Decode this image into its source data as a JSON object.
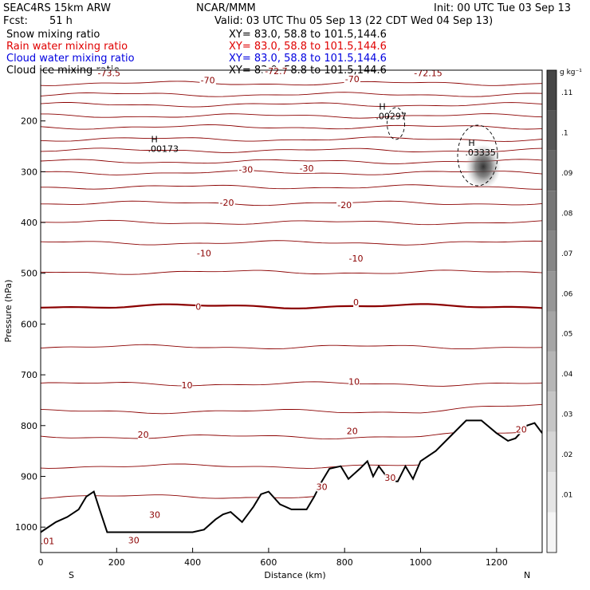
{
  "header": {
    "model": "SEAC4RS 15km ARW",
    "org": "NCAR/MMM",
    "init": "Init: 00 UTC Tue 03 Sep 13",
    "fcst_label": "Fcst:",
    "fcst_value": "51 h",
    "valid": "Valid: 03 UTC Thu 05 Sep 13 (22 CDT Wed 04 Sep 13)"
  },
  "fields": [
    {
      "name": "Snow mixing ratio",
      "xy": "XY=  83.0, 58.8 to 101.5,144.6",
      "color": "#000000"
    },
    {
      "name": "Rain water mixing ratio",
      "xy": "XY=  83.0, 58.8 to 101.5,144.6",
      "color": "#e00000"
    },
    {
      "name": "Cloud water mixing ratio",
      "xy": "XY=  83.0, 58.8 to 101.5,144.6",
      "color": "#0000e0"
    },
    {
      "name": "Cloud ice mixing ratio",
      "xy": "XY=  83.0, 58.8 to 101.5,144.6",
      "color": "#000000"
    }
  ],
  "colorbar": {
    "unit": "g kg⁻¹",
    "ticks": [
      ".11",
      ".1",
      ".09",
      ".08",
      ".07",
      ".06",
      ".05",
      ".04",
      ".03",
      ".02",
      ".01"
    ]
  },
  "chart_data": {
    "type": "contour",
    "xlabel": "Distance (km)",
    "ylabel": "Pressure (hPa)",
    "xlim": [
      0,
      1320
    ],
    "ylim": [
      1050,
      100
    ],
    "x_ticks": [
      0,
      200,
      400,
      600,
      800,
      1000,
      1200
    ],
    "y_ticks": [
      200,
      300,
      400,
      500,
      600,
      700,
      800,
      900,
      1000
    ],
    "x_end_labels": {
      "left": "S",
      "right": "N"
    },
    "contour_color": "#8b0000",
    "isotherm_levels": [
      -75,
      -70,
      -65,
      -60,
      -55,
      -50,
      -45,
      -40,
      -35,
      -30,
      -25,
      -20,
      -15,
      -10,
      -5,
      0,
      5,
      10,
      15,
      20,
      25,
      30
    ],
    "isotherm_labels": [
      {
        "text": "-73.5",
        "x": 180,
        "p": 110
      },
      {
        "text": "-72.7",
        "x": 620,
        "p": 106
      },
      {
        "text": "-72.15",
        "x": 1020,
        "p": 110
      },
      {
        "text": "-70",
        "x": 440,
        "p": 124
      },
      {
        "text": "-70",
        "x": 820,
        "p": 122
      },
      {
        "text": "-30",
        "x": 540,
        "p": 300
      },
      {
        "text": "-30",
        "x": 700,
        "p": 298
      },
      {
        "text": "-20",
        "x": 490,
        "p": 365
      },
      {
        "text": "-20",
        "x": 800,
        "p": 370
      },
      {
        "text": "-10",
        "x": 430,
        "p": 465
      },
      {
        "text": "-10",
        "x": 830,
        "p": 475
      },
      {
        "text": "0",
        "x": 415,
        "p": 570
      },
      {
        "text": "0",
        "x": 830,
        "p": 562
      },
      {
        "text": "10",
        "x": 385,
        "p": 725
      },
      {
        "text": "10",
        "x": 825,
        "p": 718
      },
      {
        "text": "20",
        "x": 270,
        "p": 822
      },
      {
        "text": "20",
        "x": 820,
        "p": 815
      },
      {
        "text": "20",
        "x": 1265,
        "p": 812
      },
      {
        "text": "30",
        "x": 300,
        "p": 980
      },
      {
        "text": "30",
        "x": 740,
        "p": 925
      },
      {
        "text": "30",
        "x": 920,
        "p": 907
      },
      {
        "text": "30",
        "x": 245,
        "p": 1030
      },
      {
        "text": ".01",
        "x": 18,
        "p": 1032
      }
    ],
    "maxima": [
      {
        "text": ".00173",
        "x": 320,
        "p": 255
      },
      {
        "text": ".00297",
        "x": 920,
        "p": 190
      },
      {
        "text": ".03335",
        "x": 1155,
        "p": 262
      }
    ],
    "max_marker": "H",
    "hydrometeor_max": {
      "x": 1165,
      "p": 290,
      "value": 0.03335,
      "unit": "g kg-1"
    },
    "terrain": {
      "x": [
        0,
        40,
        70,
        100,
        120,
        140,
        155,
        175,
        200,
        260,
        320,
        400,
        430,
        460,
        480,
        500,
        530,
        560,
        580,
        600,
        630,
        660,
        700,
        720,
        740,
        760,
        790,
        810,
        840,
        860,
        875,
        890,
        920,
        940,
        960,
        980,
        1000,
        1040,
        1080,
        1120,
        1160,
        1200,
        1230,
        1250,
        1280,
        1300,
        1320
      ],
      "p": [
        1010,
        990,
        980,
        965,
        940,
        930,
        965,
        1010,
        1010,
        1010,
        1010,
        1010,
        1005,
        985,
        975,
        970,
        990,
        960,
        935,
        930,
        955,
        965,
        965,
        940,
        910,
        885,
        880,
        905,
        885,
        870,
        900,
        880,
        910,
        910,
        880,
        905,
        870,
        850,
        820,
        790,
        790,
        815,
        830,
        825,
        800,
        795,
        815
      ]
    }
  }
}
